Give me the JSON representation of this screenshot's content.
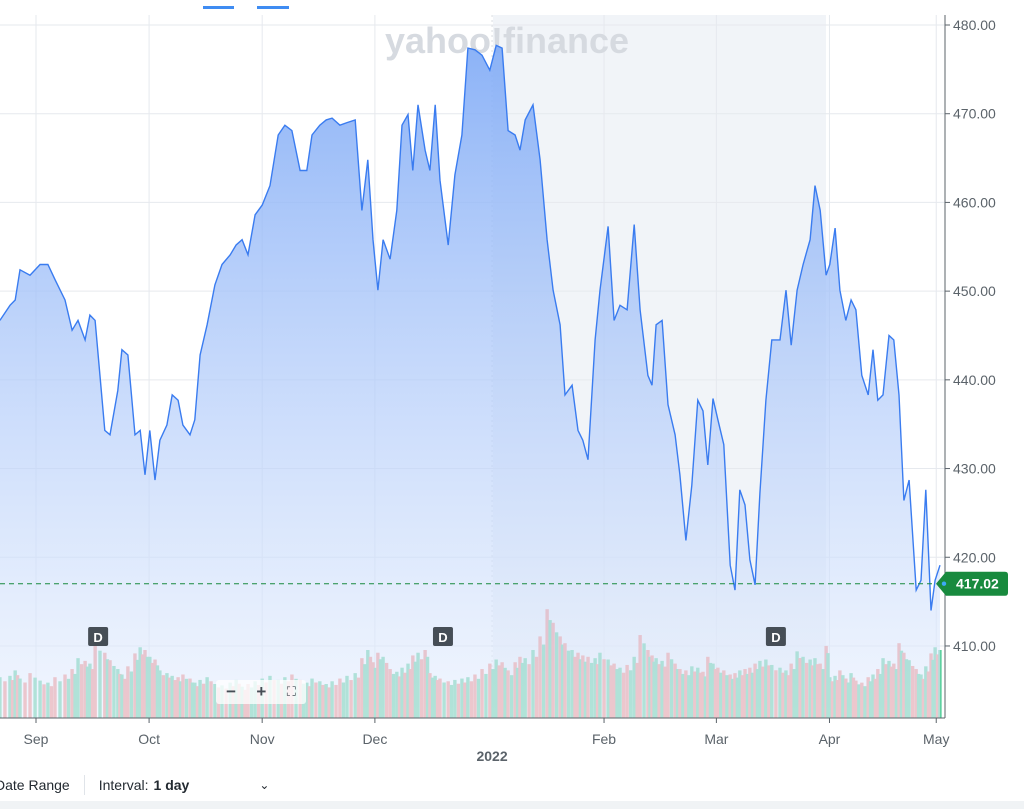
{
  "toolbar": {
    "date_range_label": "Date Range",
    "interval_label": "Interval:",
    "interval_value": "1 day",
    "chevron_icon": "chevron-down-icon"
  },
  "zoom_controls": {
    "zoom_out": "−",
    "zoom_in": "+",
    "fullscreen": "⛶"
  },
  "watermark": "yahoo!finance",
  "colors": {
    "line": "#3a7cf0",
    "up": "#5fd0a0",
    "down": "#f58a84",
    "price_tag": "#188a3e"
  },
  "chart_data": {
    "type": "area",
    "title": "",
    "x_unit": "days since Sep 1, 2021",
    "ylim": [
      402,
      481
    ],
    "y_ticks": [
      "480.00",
      "470.00",
      "460.00",
      "450.00",
      "440.00",
      "430.00",
      "420.00",
      "410.00"
    ],
    "y_tick_values": [
      480,
      470,
      460,
      450,
      440,
      430,
      420,
      410
    ],
    "x_ticks": [
      {
        "label": "Sep",
        "day": 0
      },
      {
        "label": "Oct",
        "day": 30.4
      },
      {
        "label": "Nov",
        "day": 60.8
      },
      {
        "label": "Dec",
        "day": 91.1
      },
      {
        "label": "Feb",
        "day": 152.7
      },
      {
        "label": "Mar",
        "day": 182.9
      },
      {
        "label": "Apr",
        "day": 213.3
      },
      {
        "label": "May",
        "day": 242
      }
    ],
    "year_label": {
      "label": "2022",
      "day": 122.6
    },
    "current_price": "417.02",
    "current_value": 417.02,
    "dividend_marker": "D",
    "dividends": [
      16.7,
      109.4,
      198.9
    ],
    "series": [
      {
        "name": "Close",
        "points": [
          [
            -9.7,
            446.7
          ],
          [
            -7,
            448.4
          ],
          [
            -5.6,
            449
          ],
          [
            -4.3,
            452.4
          ],
          [
            -1.6,
            451.8
          ],
          [
            1.1,
            453
          ],
          [
            3.2,
            453
          ],
          [
            5.1,
            451.3
          ],
          [
            7.8,
            449
          ],
          [
            9.7,
            445.6
          ],
          [
            11.3,
            446.7
          ],
          [
            13.2,
            444.5
          ],
          [
            14.5,
            447.3
          ],
          [
            15.9,
            446.7
          ],
          [
            18.5,
            434.3
          ],
          [
            19.9,
            433.8
          ],
          [
            22,
            438.8
          ],
          [
            23.1,
            443.4
          ],
          [
            24.7,
            442.8
          ],
          [
            26.6,
            433.8
          ],
          [
            28,
            434.3
          ],
          [
            29.3,
            429.3
          ],
          [
            30.6,
            434.3
          ],
          [
            32,
            428.7
          ],
          [
            33.3,
            433.2
          ],
          [
            35.2,
            434.9
          ],
          [
            36.6,
            438.3
          ],
          [
            38.2,
            437.7
          ],
          [
            39.5,
            434.9
          ],
          [
            41.4,
            433.8
          ],
          [
            42.7,
            435.5
          ],
          [
            44.1,
            442.8
          ],
          [
            46,
            446.2
          ],
          [
            48.1,
            450.7
          ],
          [
            50,
            453
          ],
          [
            52.2,
            454.1
          ],
          [
            53.8,
            455.2
          ],
          [
            55.4,
            455.8
          ],
          [
            57,
            454.1
          ],
          [
            58.9,
            458.6
          ],
          [
            60.8,
            459.7
          ],
          [
            62.9,
            461.9
          ],
          [
            65.1,
            467.6
          ],
          [
            66.9,
            468.7
          ],
          [
            68.8,
            468.1
          ],
          [
            71,
            463.6
          ],
          [
            72.8,
            463.6
          ],
          [
            74.2,
            467.6
          ],
          [
            76.3,
            468.7
          ],
          [
            78,
            469.3
          ],
          [
            79.6,
            469.5
          ],
          [
            81.7,
            468.7
          ],
          [
            83.6,
            469
          ],
          [
            85.8,
            469.3
          ],
          [
            87.6,
            459.1
          ],
          [
            89.2,
            464.8
          ],
          [
            90.6,
            455.8
          ],
          [
            91.9,
            450.1
          ],
          [
            93.3,
            455.8
          ],
          [
            95.2,
            453.6
          ],
          [
            97,
            459.1
          ],
          [
            98.4,
            468.7
          ],
          [
            100,
            469.9
          ],
          [
            101.3,
            463.6
          ],
          [
            102.7,
            471
          ],
          [
            104.6,
            465.9
          ],
          [
            105.9,
            463.6
          ],
          [
            107.3,
            471
          ],
          [
            108.6,
            462.5
          ],
          [
            110.8,
            455.2
          ],
          [
            112.6,
            463.1
          ],
          [
            114.5,
            467.6
          ],
          [
            116.1,
            477.4
          ],
          [
            118,
            477.2
          ],
          [
            119.9,
            476.6
          ],
          [
            122,
            474.9
          ],
          [
            123.7,
            477.7
          ],
          [
            125.3,
            477.4
          ],
          [
            126.9,
            468.1
          ],
          [
            128.8,
            467.6
          ],
          [
            130.1,
            465.9
          ],
          [
            131.5,
            469.3
          ],
          [
            133.6,
            471
          ],
          [
            135.5,
            464.8
          ],
          [
            137.4,
            455.8
          ],
          [
            139,
            450.1
          ],
          [
            140.9,
            446.2
          ],
          [
            142.2,
            438.3
          ],
          [
            144.1,
            439.4
          ],
          [
            145.7,
            434.3
          ],
          [
            147,
            433.2
          ],
          [
            148.4,
            431
          ],
          [
            150.3,
            444.5
          ],
          [
            151.6,
            450.1
          ],
          [
            153.8,
            457.3
          ],
          [
            155.4,
            446.7
          ],
          [
            157,
            448.4
          ],
          [
            158.9,
            447.9
          ],
          [
            160.8,
            457.5
          ],
          [
            162.4,
            447.9
          ],
          [
            164.5,
            440.5
          ],
          [
            165.6,
            439.4
          ],
          [
            166.7,
            446.2
          ],
          [
            168.3,
            446.7
          ],
          [
            169.9,
            437.2
          ],
          [
            171.8,
            433.8
          ],
          [
            173.1,
            429.3
          ],
          [
            174.7,
            421.9
          ],
          [
            176.3,
            428.1
          ],
          [
            177.9,
            437.7
          ],
          [
            179.3,
            436.5
          ],
          [
            180.6,
            430.4
          ],
          [
            182,
            437.9
          ],
          [
            183.3,
            435.5
          ],
          [
            184.9,
            432.7
          ],
          [
            186.6,
            419.1
          ],
          [
            187.9,
            416.3
          ],
          [
            189.2,
            427.6
          ],
          [
            190.6,
            425.9
          ],
          [
            191.9,
            419.7
          ],
          [
            193.3,
            416.9
          ],
          [
            194.6,
            427.2
          ],
          [
            196.2,
            437.7
          ],
          [
            197.8,
            444.5
          ],
          [
            200,
            444.5
          ],
          [
            201.6,
            450.1
          ],
          [
            203,
            443.9
          ],
          [
            204.6,
            450.1
          ],
          [
            206.2,
            453
          ],
          [
            208.1,
            455.8
          ],
          [
            209.4,
            461.9
          ],
          [
            210.8,
            459.1
          ],
          [
            212.4,
            451.8
          ],
          [
            213.4,
            453
          ],
          [
            214.8,
            457.1
          ],
          [
            216.1,
            450.1
          ],
          [
            217.7,
            446.7
          ],
          [
            219.1,
            449
          ],
          [
            220.4,
            447.9
          ],
          [
            222,
            440.5
          ],
          [
            223.7,
            438.3
          ],
          [
            225,
            443.4
          ],
          [
            226.3,
            437.7
          ],
          [
            227.7,
            438.3
          ],
          [
            229.3,
            445
          ],
          [
            230.6,
            444.5
          ],
          [
            232,
            438.3
          ],
          [
            233.3,
            426.4
          ],
          [
            234.7,
            428.7
          ],
          [
            236.6,
            416.3
          ],
          [
            237.9,
            417.4
          ],
          [
            239.2,
            427.6
          ],
          [
            240.6,
            414
          ],
          [
            241.7,
            417.4
          ],
          [
            243,
            419.1
          ]
        ]
      }
    ],
    "volume": [
      60,
      62,
      70,
      58,
      66,
      55,
      52,
      60,
      64,
      72,
      88,
      84,
      80,
      110,
      96,
      85,
      72,
      64,
      76,
      95,
      104,
      100,
      90,
      86,
      70,
      66,
      62,
      60,
      64,
      58,
      52,
      56,
      60,
      50,
      48,
      52,
      56,
      46,
      50,
      54,
      58,
      62,
      56,
      60,
      64,
      56,
      52,
      58,
      54,
      50,
      54,
      58,
      62,
      66,
      88,
      100,
      82,
      96,
      90,
      72,
      68,
      74,
      80,
      92,
      96,
      100,
      66,
      62,
      58,
      54,
      56,
      58,
      60,
      64,
      72,
      80,
      86,
      82,
      70,
      82,
      90,
      88,
      100,
      120,
      160,
      140,
      120,
      110,
      100,
      96,
      92,
      90,
      88,
      96,
      86,
      80,
      74,
      78,
      90,
      122,
      100,
      92,
      88,
      84,
      96,
      80,
      72,
      70,
      76,
      74,
      68,
      90,
      80,
      74,
      70,
      64,
      66,
      70,
      72,
      74,
      80,
      84,
      86,
      78,
      74,
      70,
      80,
      98,
      90,
      86,
      88,
      80,
      106
    ]
  }
}
